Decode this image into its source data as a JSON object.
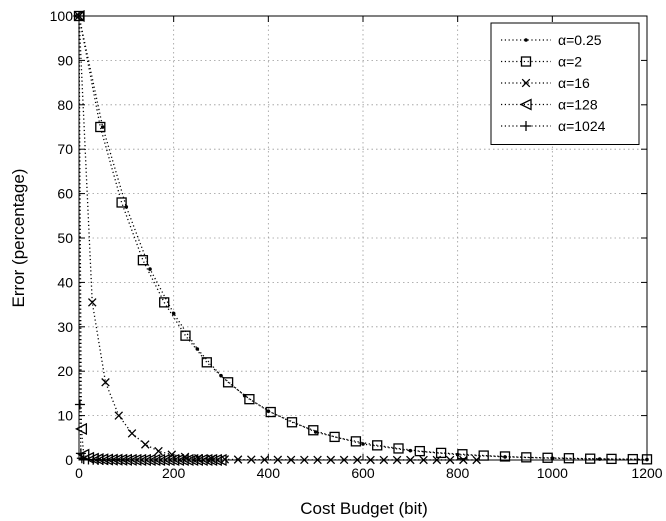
{
  "chart_data": {
    "type": "line",
    "title": "",
    "xlabel": "Cost Budget (bit)",
    "ylabel": "Error (percentage)",
    "xlim": [
      0,
      1200
    ],
    "ylim": [
      0,
      100
    ],
    "xticks": [
      0,
      200,
      400,
      600,
      800,
      1000,
      1200
    ],
    "yticks": [
      0,
      10,
      20,
      30,
      40,
      50,
      60,
      70,
      80,
      90,
      100
    ],
    "grid": true,
    "legend_position": "top-right",
    "line_style": "dotted",
    "color": "#000000",
    "series": [
      {
        "name": "α=0.25",
        "marker": "point",
        "x": [
          0,
          50,
          100,
          150,
          200,
          250,
          300,
          350,
          400,
          500,
          600,
          700,
          800,
          900,
          1000,
          1100,
          1200
        ],
        "y": [
          100,
          75,
          57,
          43,
          33,
          25,
          19,
          14.5,
          11,
          6.3,
          3.6,
          2.1,
          1.2,
          0.7,
          0.4,
          0.2,
          0.1
        ]
      },
      {
        "name": "α=2",
        "marker": "square",
        "x": [
          0,
          45,
          90,
          135,
          180,
          225,
          270,
          315,
          360,
          405,
          450,
          495,
          540,
          585,
          630,
          675,
          720,
          765,
          810,
          855,
          900,
          945,
          990,
          1035,
          1080,
          1125,
          1170,
          1200
        ],
        "y": [
          100,
          75,
          58,
          45,
          35.5,
          28,
          22,
          17.5,
          13.7,
          10.8,
          8.5,
          6.7,
          5.2,
          4.2,
          3.3,
          2.6,
          2.0,
          1.6,
          1.3,
          1.0,
          0.8,
          0.6,
          0.5,
          0.4,
          0.3,
          0.25,
          0.2,
          0.15
        ]
      },
      {
        "name": "α=16",
        "marker": "x",
        "x": [
          0,
          28,
          56,
          84,
          112,
          140,
          168,
          196,
          224,
          252,
          280,
          308,
          336,
          364,
          392,
          420,
          448,
          476,
          504,
          532,
          560,
          588,
          616,
          644,
          672,
          700,
          728,
          756,
          784,
          812,
          840
        ],
        "y": [
          100,
          35.5,
          17.5,
          10,
          6,
          3.5,
          2,
          1.2,
          0.7,
          0.4,
          0.25,
          0.15,
          0.1,
          0.08,
          0.06,
          0.05,
          0.04,
          0.03,
          0.03,
          0.02,
          0.02,
          0.02,
          0.01,
          0.01,
          0.01,
          0.01,
          0.01,
          0.01,
          0.01,
          0.01,
          0.01
        ]
      },
      {
        "name": "α=128",
        "marker": "triangle-left",
        "x": [
          0,
          5,
          10,
          20,
          30,
          40,
          50,
          60,
          70,
          80,
          90,
          100,
          110,
          120,
          130,
          140,
          150,
          160,
          170,
          180,
          190,
          200,
          210,
          220,
          230,
          240,
          250,
          260,
          270,
          280,
          290,
          300
        ],
        "y": [
          100,
          7,
          1.2,
          0.5,
          0.3,
          0.2,
          0.15,
          0.1,
          0.08,
          0.06,
          0.05,
          0.04,
          0.03,
          0.03,
          0.02,
          0.02,
          0.02,
          0.01,
          0.01,
          0.01,
          0.01,
          0.01,
          0.01,
          0.01,
          0.01,
          0.01,
          0.01,
          0.01,
          0.01,
          0.01,
          0.01,
          0.01
        ]
      },
      {
        "name": "α=1024",
        "marker": "plus",
        "x": [
          0,
          2,
          4,
          6,
          10,
          20,
          30,
          40,
          50,
          60,
          70,
          80,
          90,
          100
        ],
        "y": [
          100,
          12.5,
          1.5,
          0.4,
          0.2,
          0.1,
          0.05,
          0.03,
          0.02,
          0.01,
          0.01,
          0.01,
          0.01,
          0.01
        ]
      }
    ]
  }
}
